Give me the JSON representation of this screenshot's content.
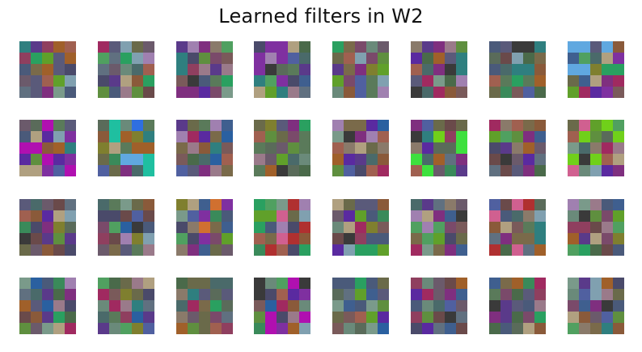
{
  "title": "Learned filters in W2",
  "grid": {
    "rows": 4,
    "cols": 8,
    "filter_size": 5
  },
  "palette": [
    "#5a6b5a",
    "#6b5a6b",
    "#5a5a7a",
    "#7a5a5a",
    "#5a7a5a",
    "#6a6a4a",
    "#4a6a6a",
    "#7a6a4a",
    "#4a5a7a",
    "#7a4a6a",
    "#3a8a5a",
    "#5a3a8a",
    "#8a5a3a",
    "#6a8a7a",
    "#8a7a6a",
    "#4a4a6a",
    "#6a4a4a",
    "#4a6a4a",
    "#9a7a8a",
    "#7a9a8a",
    "#3f5f8f",
    "#8f3f5f",
    "#5f8f3f",
    "#2f7f7f",
    "#7f2f7f",
    "#7f7f2f",
    "#a06050",
    "#5060a0",
    "#50a060",
    "#607080",
    "#3a3a3a",
    "#b0a080",
    "#80a0b0",
    "#a080b0",
    "#2aa060",
    "#a02a60",
    "#60a02a",
    "#5a2aa0",
    "#2a60a0",
    "#a0602a"
  ],
  "special_colors": {
    "bright_green": "#3ee03e",
    "lime": "#70d01a",
    "blue": "#2f6fe0",
    "teal": "#1fbfa0",
    "magenta": "#b010b0",
    "red": "#b03030",
    "sky": "#60a8e0",
    "pink": "#d06090",
    "purple": "#7f30a0",
    "orange": "#d07030"
  }
}
